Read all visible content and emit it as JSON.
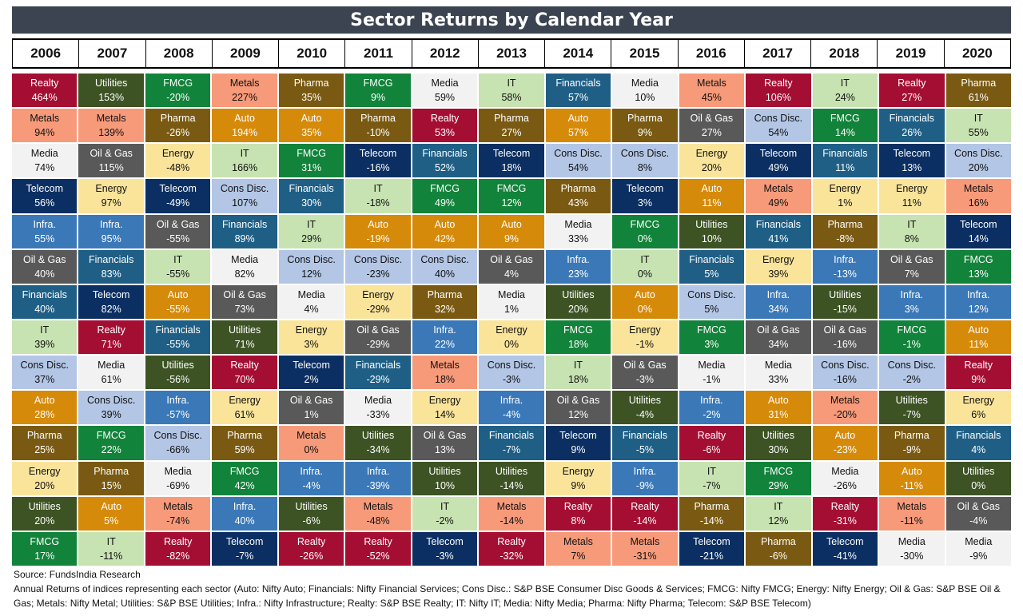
{
  "title": "Sector Returns by Calendar Year",
  "colors": {
    "Realty": "#a50e33",
    "Metals": "#f79a7a",
    "Media": "#f2f2f2",
    "Telecom": "#0b2f62",
    "Infra.": "#3a78b8",
    "Oil & Gas": "#595959",
    "Financials": "#1f5f86",
    "IT": "#c8e3b2",
    "Cons Disc.": "#b3c6e5",
    "Auto": "#d68a0a",
    "Pharma": "#7a5a12",
    "Energy": "#f9e49a",
    "Utilities": "#3d5324",
    "FMCG": "#12833a"
  },
  "chart_data": {
    "type": "table",
    "title": "Sector Returns by Calendar Year",
    "years": [
      "2006",
      "2007",
      "2008",
      "2009",
      "2010",
      "2011",
      "2012",
      "2013",
      "2014",
      "2015",
      "2016",
      "2017",
      "2018",
      "2019",
      "2020"
    ],
    "columns": [
      [
        [
          "Realty",
          "464%"
        ],
        [
          "Metals",
          "94%"
        ],
        [
          "Media",
          "74%"
        ],
        [
          "Telecom",
          "56%"
        ],
        [
          "Infra.",
          "55%"
        ],
        [
          "Oil & Gas",
          "40%"
        ],
        [
          "Financials",
          "40%"
        ],
        [
          "IT",
          "39%"
        ],
        [
          "Cons Disc.",
          "37%"
        ],
        [
          "Auto",
          "28%"
        ],
        [
          "Pharma",
          "25%"
        ],
        [
          "Energy",
          "20%"
        ],
        [
          "Utilities",
          "20%"
        ],
        [
          "FMCG",
          "17%"
        ]
      ],
      [
        [
          "Utilities",
          "153%"
        ],
        [
          "Metals",
          "139%"
        ],
        [
          "Oil & Gas",
          "115%"
        ],
        [
          "Energy",
          "97%"
        ],
        [
          "Infra.",
          "95%"
        ],
        [
          "Financials",
          "83%"
        ],
        [
          "Telecom",
          "82%"
        ],
        [
          "Realty",
          "71%"
        ],
        [
          "Media",
          "61%"
        ],
        [
          "Cons Disc.",
          "39%"
        ],
        [
          "FMCG",
          "22%"
        ],
        [
          "Pharma",
          "15%"
        ],
        [
          "Auto",
          "5%"
        ],
        [
          "IT",
          "-11%"
        ]
      ],
      [
        [
          "FMCG",
          "-20%"
        ],
        [
          "Pharma",
          "-26%"
        ],
        [
          "Energy",
          "-48%"
        ],
        [
          "Telecom",
          "-49%"
        ],
        [
          "Oil & Gas",
          "-55%"
        ],
        [
          "IT",
          "-55%"
        ],
        [
          "Auto",
          "-55%"
        ],
        [
          "Financials",
          "-55%"
        ],
        [
          "Utilities",
          "-56%"
        ],
        [
          "Infra.",
          "-57%"
        ],
        [
          "Cons Disc.",
          "-66%"
        ],
        [
          "Media",
          "-69%"
        ],
        [
          "Metals",
          "-74%"
        ],
        [
          "Realty",
          "-82%"
        ]
      ],
      [
        [
          "Metals",
          "227%"
        ],
        [
          "Auto",
          "194%"
        ],
        [
          "IT",
          "166%"
        ],
        [
          "Cons Disc.",
          "107%"
        ],
        [
          "Financials",
          "89%"
        ],
        [
          "Media",
          "82%"
        ],
        [
          "Oil & Gas",
          "73%"
        ],
        [
          "Utilities",
          "71%"
        ],
        [
          "Realty",
          "70%"
        ],
        [
          "Energy",
          "61%"
        ],
        [
          "Pharma",
          "59%"
        ],
        [
          "FMCG",
          "42%"
        ],
        [
          "Infra.",
          "40%"
        ],
        [
          "Telecom",
          "-7%"
        ]
      ],
      [
        [
          "Pharma",
          "35%"
        ],
        [
          "Auto",
          "35%"
        ],
        [
          "FMCG",
          "31%"
        ],
        [
          "Financials",
          "30%"
        ],
        [
          "IT",
          "29%"
        ],
        [
          "Cons Disc.",
          "12%"
        ],
        [
          "Media",
          "4%"
        ],
        [
          "Energy",
          "3%"
        ],
        [
          "Telecom",
          "2%"
        ],
        [
          "Oil & Gas",
          "1%"
        ],
        [
          "Metals",
          "0%"
        ],
        [
          "Infra.",
          "-4%"
        ],
        [
          "Utilities",
          "-6%"
        ],
        [
          "Realty",
          "-26%"
        ]
      ],
      [
        [
          "FMCG",
          "9%"
        ],
        [
          "Pharma",
          "-10%"
        ],
        [
          "Telecom",
          "-16%"
        ],
        [
          "IT",
          "-18%"
        ],
        [
          "Auto",
          "-19%"
        ],
        [
          "Cons Disc.",
          "-23%"
        ],
        [
          "Energy",
          "-29%"
        ],
        [
          "Oil & Gas",
          "-29%"
        ],
        [
          "Financials",
          "-29%"
        ],
        [
          "Media",
          "-33%"
        ],
        [
          "Utilities",
          "-34%"
        ],
        [
          "Infra.",
          "-39%"
        ],
        [
          "Metals",
          "-48%"
        ],
        [
          "Realty",
          "-52%"
        ]
      ],
      [
        [
          "Media",
          "59%"
        ],
        [
          "Realty",
          "53%"
        ],
        [
          "Financials",
          "52%"
        ],
        [
          "FMCG",
          "49%"
        ],
        [
          "Auto",
          "42%"
        ],
        [
          "Cons Disc.",
          "40%"
        ],
        [
          "Pharma",
          "32%"
        ],
        [
          "Infra.",
          "22%"
        ],
        [
          "Metals",
          "18%"
        ],
        [
          "Energy",
          "14%"
        ],
        [
          "Oil & Gas",
          "13%"
        ],
        [
          "Utilities",
          "10%"
        ],
        [
          "IT",
          "-2%"
        ],
        [
          "Telecom",
          "-3%"
        ]
      ],
      [
        [
          "IT",
          "58%"
        ],
        [
          "Pharma",
          "27%"
        ],
        [
          "Telecom",
          "18%"
        ],
        [
          "FMCG",
          "12%"
        ],
        [
          "Auto",
          "9%"
        ],
        [
          "Oil & Gas",
          "4%"
        ],
        [
          "Media",
          "1%"
        ],
        [
          "Energy",
          "0%"
        ],
        [
          "Cons Disc.",
          "-3%"
        ],
        [
          "Infra.",
          "-4%"
        ],
        [
          "Financials",
          "-7%"
        ],
        [
          "Utilities",
          "-14%"
        ],
        [
          "Metals",
          "-14%"
        ],
        [
          "Realty",
          "-32%"
        ]
      ],
      [
        [
          "Financials",
          "57%"
        ],
        [
          "Auto",
          "57%"
        ],
        [
          "Cons Disc.",
          "54%"
        ],
        [
          "Pharma",
          "43%"
        ],
        [
          "Media",
          "33%"
        ],
        [
          "Infra.",
          "23%"
        ],
        [
          "Utilities",
          "20%"
        ],
        [
          "FMCG",
          "18%"
        ],
        [
          "IT",
          "18%"
        ],
        [
          "Oil & Gas",
          "12%"
        ],
        [
          "Telecom",
          "9%"
        ],
        [
          "Energy",
          "9%"
        ],
        [
          "Realty",
          "8%"
        ],
        [
          "Metals",
          "7%"
        ]
      ],
      [
        [
          "Media",
          "10%"
        ],
        [
          "Pharma",
          "9%"
        ],
        [
          "Cons Disc.",
          "8%"
        ],
        [
          "Telecom",
          "3%"
        ],
        [
          "FMCG",
          "0%"
        ],
        [
          "IT",
          "0%"
        ],
        [
          "Auto",
          "0%"
        ],
        [
          "Energy",
          "-1%"
        ],
        [
          "Oil & Gas",
          "-3%"
        ],
        [
          "Utilities",
          "-4%"
        ],
        [
          "Financials",
          "-5%"
        ],
        [
          "Infra.",
          "-9%"
        ],
        [
          "Realty",
          "-14%"
        ],
        [
          "Metals",
          "-31%"
        ]
      ],
      [
        [
          "Metals",
          "45%"
        ],
        [
          "Oil & Gas",
          "27%"
        ],
        [
          "Energy",
          "20%"
        ],
        [
          "Auto",
          "11%"
        ],
        [
          "Utilities",
          "10%"
        ],
        [
          "Financials",
          "5%"
        ],
        [
          "Cons Disc.",
          "5%"
        ],
        [
          "FMCG",
          "3%"
        ],
        [
          "Media",
          "-1%"
        ],
        [
          "Infra.",
          "-2%"
        ],
        [
          "Realty",
          "-6%"
        ],
        [
          "IT",
          "-7%"
        ],
        [
          "Pharma",
          "-14%"
        ],
        [
          "Telecom",
          "-21%"
        ]
      ],
      [
        [
          "Realty",
          "106%"
        ],
        [
          "Cons Disc.",
          "54%"
        ],
        [
          "Telecom",
          "49%"
        ],
        [
          "Metals",
          "49%"
        ],
        [
          "Financials",
          "41%"
        ],
        [
          "Energy",
          "39%"
        ],
        [
          "Infra.",
          "34%"
        ],
        [
          "Oil & Gas",
          "34%"
        ],
        [
          "Media",
          "33%"
        ],
        [
          "Auto",
          "31%"
        ],
        [
          "Utilities",
          "30%"
        ],
        [
          "FMCG",
          "29%"
        ],
        [
          "IT",
          "12%"
        ],
        [
          "Pharma",
          "-6%"
        ]
      ],
      [
        [
          "IT",
          "24%"
        ],
        [
          "FMCG",
          "14%"
        ],
        [
          "Financials",
          "11%"
        ],
        [
          "Energy",
          "1%"
        ],
        [
          "Pharma",
          "-8%"
        ],
        [
          "Infra.",
          "-13%"
        ],
        [
          "Utilities",
          "-15%"
        ],
        [
          "Oil & Gas",
          "-16%"
        ],
        [
          "Cons Disc.",
          "-16%"
        ],
        [
          "Metals",
          "-20%"
        ],
        [
          "Auto",
          "-23%"
        ],
        [
          "Media",
          "-26%"
        ],
        [
          "Realty",
          "-31%"
        ],
        [
          "Telecom",
          "-41%"
        ]
      ],
      [
        [
          "Realty",
          "27%"
        ],
        [
          "Financials",
          "26%"
        ],
        [
          "Telecom",
          "13%"
        ],
        [
          "Energy",
          "11%"
        ],
        [
          "IT",
          "8%"
        ],
        [
          "Oil & Gas",
          "7%"
        ],
        [
          "Infra.",
          "3%"
        ],
        [
          "FMCG",
          "-1%"
        ],
        [
          "Cons Disc.",
          "-2%"
        ],
        [
          "Utilities",
          "-7%"
        ],
        [
          "Pharma",
          "-9%"
        ],
        [
          "Auto",
          "-11%"
        ],
        [
          "Metals",
          "-11%"
        ],
        [
          "Media",
          "-30%"
        ]
      ],
      [
        [
          "Pharma",
          "61%"
        ],
        [
          "IT",
          "55%"
        ],
        [
          "Cons Disc.",
          "20%"
        ],
        [
          "Metals",
          "16%"
        ],
        [
          "Telecom",
          "14%"
        ],
        [
          "FMCG",
          "13%"
        ],
        [
          "Infra.",
          "12%"
        ],
        [
          "Auto",
          "11%"
        ],
        [
          "Realty",
          "9%"
        ],
        [
          "Energy",
          "6%"
        ],
        [
          "Financials",
          "4%"
        ],
        [
          "Utilities",
          "0%"
        ],
        [
          "Oil & Gas",
          "-4%"
        ],
        [
          "Media",
          "-9%"
        ]
      ]
    ]
  },
  "footer": {
    "source": "Source: FundsIndia Research",
    "note": "Annual Returns of  indices representing each sector (Auto: Nifty Auto; Financials: Nifty Financial Services; Cons Disc.: S&P BSE Consumer Disc Goods & Services; FMCG: Nifty FMCG; Energy: Nifty Energy; Oil & Gas: S&P BSE Oil & Gas; Metals: Nifty Metal; Utilities: S&P BSE Utilities; Infra.: Nifty Infrastructure; Realty: S&P BSE Realty; IT: Nifty IT; Media: Nifty Media; Pharma: Nifty Pharma; Telecom: S&P BSE Telecom)"
  }
}
